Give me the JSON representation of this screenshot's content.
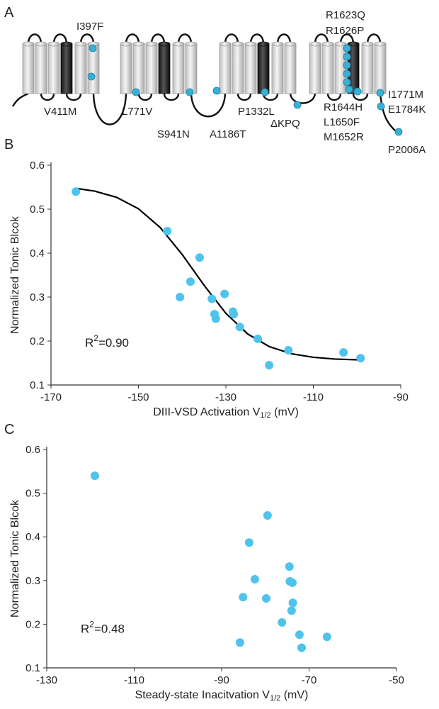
{
  "diagram": {
    "panel": "A",
    "mutations": [
      "I397F",
      "V411M",
      "L771V",
      "S941N",
      "A1186T",
      "P1332L",
      "ΔKPQ",
      "R1623Q",
      "R1626P",
      "R1644H",
      "L1650F",
      "M1652R",
      "I1771M",
      "E1784K",
      "P2006A"
    ]
  },
  "chart_data": [
    {
      "type": "scatter",
      "panel": "B",
      "ylabel": "Normalized Tonic Blcok",
      "xlabel": {
        "text": "DIII-VSD Activation V",
        "subscript": "1/2",
        "unit": " (mV)"
      },
      "annotation": {
        "base": "R",
        "superscript": "2",
        "text": "=0.90"
      },
      "xlim": [
        -170,
        -90
      ],
      "xticks": [
        -170,
        -150,
        -130,
        -110,
        -90
      ],
      "ylim": [
        0.1,
        0.6
      ],
      "yticks": [
        0.1,
        0.2,
        0.3,
        0.4,
        0.5,
        0.6
      ],
      "points": {
        "color": "#4fc3ec",
        "x": [
          -164.3,
          -143.4,
          -140.5,
          -138.1,
          -136.0,
          -133.2,
          -132.6,
          -132.3,
          -130.3,
          -128.4,
          -128.2,
          -126.8,
          -122.7,
          -120.1,
          -115.7,
          -103.1,
          -99.2
        ],
        "values": [
          0.54,
          0.45,
          0.3,
          0.335,
          0.39,
          0.296,
          0.261,
          0.251,
          0.307,
          0.267,
          0.261,
          0.232,
          0.205,
          0.145,
          0.179,
          0.174,
          0.161
        ]
      },
      "fit": {
        "color": "#000000",
        "x": [
          -164,
          -160,
          -155,
          -150,
          -145,
          -140,
          -135,
          -130,
          -125,
          -120,
          -115,
          -110,
          -105,
          -99
        ],
        "values": [
          0.547,
          0.541,
          0.527,
          0.501,
          0.458,
          0.397,
          0.327,
          0.263,
          0.216,
          0.187,
          0.171,
          0.163,
          0.159,
          0.157
        ]
      }
    },
    {
      "type": "scatter",
      "panel": "C",
      "ylabel": "Normalized Tonic Blcok",
      "xlabel": {
        "text": "Steady-state Inacitvation V",
        "subscript": "1/2",
        "unit": " (mV)"
      },
      "annotation": {
        "base": "R",
        "superscript": "2",
        "text": "=0.48"
      },
      "xlim": [
        -130,
        -50
      ],
      "xticks": [
        -130,
        -110,
        -90,
        -70,
        -50
      ],
      "ylim": [
        0.1,
        0.6
      ],
      "yticks": [
        0.1,
        0.2,
        0.3,
        0.4,
        0.5,
        0.6
      ],
      "points": {
        "color": "#4fc3ec",
        "x": [
          -119.0,
          -79.5,
          -83.7,
          -74.5,
          -82.4,
          -74.4,
          -73.8,
          -85.1,
          -79.8,
          -73.7,
          -74.0,
          -76.2,
          -72.2,
          -65.9,
          -85.8,
          -71.7
        ],
        "values": [
          0.54,
          0.449,
          0.387,
          0.332,
          0.303,
          0.298,
          0.295,
          0.262,
          0.259,
          0.249,
          0.231,
          0.204,
          0.176,
          0.171,
          0.158,
          0.146
        ]
      }
    }
  ]
}
